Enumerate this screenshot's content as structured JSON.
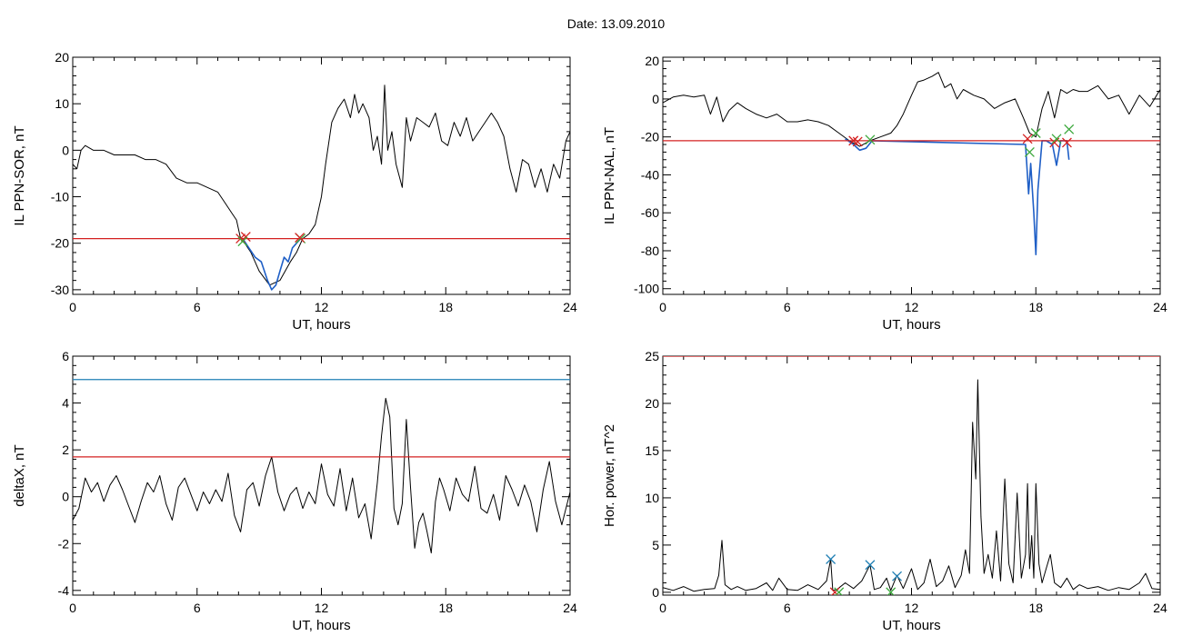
{
  "figure": {
    "title": "Date:  13.09.2010"
  },
  "chart_data": [
    {
      "type": "line",
      "id": "p1",
      "xlabel": "UT, hours",
      "ylabel": "IL PPN-SOR, nT",
      "xlim": [
        0,
        24
      ],
      "ylim": [
        -31,
        20
      ],
      "xticks": [
        0,
        6,
        12,
        18,
        24
      ],
      "yticks": [
        -30,
        -20,
        -10,
        0,
        10,
        20
      ],
      "hlines": [
        {
          "y": -19,
          "color": "#d42020"
        }
      ],
      "series": [
        {
          "color": "#000000",
          "x": [
            0,
            0.2,
            0.4,
            0.6,
            1.0,
            1.5,
            2.0,
            2.5,
            3.0,
            3.5,
            4.0,
            4.5,
            5.0,
            5.5,
            6.0,
            6.5,
            7.0,
            7.3,
            7.6,
            7.9,
            8.1,
            8.3,
            8.6,
            9.0,
            9.5,
            10.0,
            10.5,
            10.8,
            11.1,
            11.4,
            11.7,
            12.0,
            12.2,
            12.5,
            12.8,
            13.1,
            13.4,
            13.6,
            13.8,
            14.0,
            14.3,
            14.5,
            14.7,
            14.9,
            15.05,
            15.2,
            15.4,
            15.6,
            15.9,
            16.1,
            16.3,
            16.6,
            16.9,
            17.2,
            17.5,
            17.8,
            18.1,
            18.4,
            18.7,
            19.0,
            19.3,
            19.6,
            19.9,
            20.2,
            20.5,
            20.8,
            21.1,
            21.4,
            21.7,
            22.0,
            22.3,
            22.6,
            22.9,
            23.2,
            23.5,
            23.8,
            24.0
          ],
          "y": [
            -3,
            -4,
            0,
            1,
            0,
            0,
            -1,
            -1,
            -1,
            -2,
            -2,
            -3,
            -6,
            -7,
            -7,
            -8,
            -9,
            -11,
            -13,
            -15,
            -19,
            -20,
            -22,
            -26,
            -29,
            -28,
            -24,
            -22,
            -19,
            -18,
            -16,
            -10,
            -3,
            6,
            9,
            11,
            7,
            12,
            8,
            10,
            7,
            0,
            3,
            -3,
            14,
            0,
            4,
            -3,
            -8,
            7,
            2,
            7,
            6,
            5,
            8,
            2,
            1,
            6,
            3,
            7,
            2,
            4,
            6,
            8,
            6,
            3,
            -4,
            -9,
            -2,
            -3,
            -8,
            -4,
            -9,
            -3,
            -6,
            2,
            4
          ]
        },
        {
          "color": "#1f5fc6",
          "x": [
            8.2,
            8.5,
            8.8,
            9.1,
            9.4,
            9.6,
            9.8,
            10.0,
            10.2,
            10.4,
            10.6,
            10.8,
            11.0
          ],
          "y": [
            -19,
            -21,
            -23,
            -24,
            -28,
            -30,
            -29,
            -26,
            -23,
            -24,
            -21,
            -20,
            -19
          ]
        }
      ],
      "markers": [
        {
          "x": 8.1,
          "y": -19,
          "color": "#d42020"
        },
        {
          "x": 8.35,
          "y": -18.6,
          "color": "#d42020"
        },
        {
          "x": 8.2,
          "y": -19.6,
          "color": "#3ba83b"
        },
        {
          "x": 11.0,
          "y": -19,
          "color": "#3ba83b"
        },
        {
          "x": 10.95,
          "y": -18.8,
          "color": "#d42020"
        }
      ]
    },
    {
      "type": "line",
      "id": "p2",
      "xlabel": "UT, hours",
      "ylabel": "IL PPN-NAL, nT",
      "xlim": [
        0,
        24
      ],
      "ylim": [
        -103,
        22
      ],
      "xticks": [
        0,
        6,
        12,
        18,
        24
      ],
      "yticks": [
        -100,
        -80,
        -60,
        -40,
        -20,
        0,
        20
      ],
      "hlines": [
        {
          "y": -22,
          "color": "#d42020"
        }
      ],
      "series": [
        {
          "color": "#000000",
          "x": [
            0,
            0.5,
            1.0,
            1.5,
            2.0,
            2.3,
            2.6,
            2.9,
            3.2,
            3.6,
            4.0,
            4.5,
            5.0,
            5.5,
            6.0,
            6.5,
            7.0,
            7.5,
            8.0,
            8.5,
            9.0,
            9.5,
            10.0,
            10.5,
            11.0,
            11.3,
            11.6,
            12.0,
            12.3,
            12.6,
            13.0,
            13.3,
            13.6,
            13.9,
            14.2,
            14.5,
            15.0,
            15.5,
            16.0,
            16.5,
            17.0,
            17.4,
            17.7,
            18.0,
            18.3,
            18.6,
            18.9,
            19.2,
            19.5,
            19.8,
            20.1,
            20.5,
            21.0,
            21.5,
            22.0,
            22.5,
            23.0,
            23.5,
            24.0
          ],
          "y": [
            -2,
            1,
            2,
            1,
            2,
            -8,
            1,
            -12,
            -6,
            -2,
            -5,
            -8,
            -10,
            -8,
            -12,
            -12,
            -11,
            -12,
            -14,
            -18,
            -22,
            -25,
            -22,
            -20,
            -18,
            -14,
            -8,
            2,
            9,
            10,
            12,
            14,
            6,
            8,
            0,
            5,
            2,
            0,
            -5,
            -2,
            0,
            -10,
            -18,
            -20,
            -5,
            4,
            -10,
            5,
            3,
            5,
            4,
            4,
            7,
            0,
            2,
            -8,
            2,
            -4,
            5
          ]
        },
        {
          "color": "#1f5fc6",
          "x": [
            8.8,
            9.2,
            9.5,
            9.8,
            10.1,
            17.5,
            17.65,
            17.75,
            17.9,
            18.0,
            18.1,
            18.3,
            18.5,
            18.8,
            19.0,
            19.2,
            19.5,
            19.6
          ],
          "y": [
            -21,
            -24,
            -27,
            -26,
            -22,
            -24,
            -50,
            -34,
            -60,
            -82,
            -48,
            -22,
            -22,
            -24,
            -35,
            -22,
            -22,
            -32
          ]
        }
      ],
      "markers": [
        {
          "x": 9.2,
          "y": -22,
          "color": "#d42020"
        },
        {
          "x": 9.4,
          "y": -22.5,
          "color": "#d42020"
        },
        {
          "x": 10.0,
          "y": -21.5,
          "color": "#3ba83b"
        },
        {
          "x": 17.6,
          "y": -21,
          "color": "#d42020"
        },
        {
          "x": 17.7,
          "y": -28,
          "color": "#3ba83b"
        },
        {
          "x": 18.0,
          "y": -18,
          "color": "#3ba83b"
        },
        {
          "x": 18.9,
          "y": -23,
          "color": "#d42020"
        },
        {
          "x": 19.0,
          "y": -21,
          "color": "#3ba83b"
        },
        {
          "x": 19.5,
          "y": -23,
          "color": "#d42020"
        },
        {
          "x": 19.6,
          "y": -16,
          "color": "#3ba83b"
        }
      ]
    },
    {
      "type": "line",
      "id": "p3",
      "xlabel": "UT, hours",
      "ylabel": "deltaX, nT",
      "xlim": [
        0,
        24
      ],
      "ylim": [
        -4.2,
        6
      ],
      "xticks": [
        0,
        6,
        12,
        18,
        24
      ],
      "yticks": [
        -4,
        -2,
        0,
        2,
        4,
        6
      ],
      "hlines": [
        {
          "y": 5,
          "color": "#1f7fb4"
        },
        {
          "y": 1.7,
          "color": "#d42020"
        }
      ],
      "series": [
        {
          "color": "#000000",
          "x": [
            0,
            0.3,
            0.6,
            0.9,
            1.2,
            1.5,
            1.8,
            2.1,
            2.4,
            2.7,
            3.0,
            3.3,
            3.6,
            3.9,
            4.2,
            4.5,
            4.8,
            5.1,
            5.4,
            5.7,
            6.0,
            6.3,
            6.6,
            6.9,
            7.2,
            7.5,
            7.8,
            8.1,
            8.4,
            8.7,
            9.0,
            9.3,
            9.6,
            9.9,
            10.2,
            10.5,
            10.8,
            11.1,
            11.4,
            11.7,
            12.0,
            12.3,
            12.6,
            12.9,
            13.2,
            13.5,
            13.8,
            14.1,
            14.4,
            14.7,
            14.9,
            15.1,
            15.3,
            15.5,
            15.7,
            15.9,
            16.1,
            16.3,
            16.5,
            16.7,
            16.9,
            17.1,
            17.3,
            17.5,
            17.7,
            17.9,
            18.2,
            18.5,
            18.8,
            19.1,
            19.4,
            19.7,
            20.0,
            20.3,
            20.6,
            20.9,
            21.2,
            21.5,
            21.8,
            22.1,
            22.4,
            22.7,
            23.0,
            23.3,
            23.6,
            24.0
          ],
          "y": [
            -1,
            -0.5,
            0.8,
            0.2,
            0.6,
            -0.2,
            0.5,
            0.9,
            0.3,
            -0.4,
            -1.1,
            -0.2,
            0.6,
            0.2,
            0.9,
            -0.3,
            -1.0,
            0.4,
            0.8,
            0.1,
            -0.6,
            0.2,
            -0.3,
            0.3,
            -0.2,
            1.0,
            -0.8,
            -1.5,
            0.3,
            0.6,
            -0.4,
            0.9,
            1.7,
            0.2,
            -0.6,
            0.1,
            0.4,
            -0.5,
            0.2,
            -0.3,
            1.4,
            0.1,
            -0.4,
            1.2,
            -0.6,
            0.8,
            -0.9,
            -0.3,
            -1.8,
            0.6,
            2.6,
            4.2,
            3.4,
            -0.5,
            -1.2,
            -0.3,
            3.3,
            0.4,
            -2.2,
            -1.1,
            -0.7,
            -1.5,
            -2.4,
            -0.2,
            0.8,
            0.3,
            -0.6,
            0.8,
            0.1,
            -0.2,
            1.3,
            -0.5,
            -0.7,
            0.1,
            -1.0,
            0.9,
            0.3,
            -0.4,
            0.5,
            -0.2,
            -1.5,
            0.3,
            1.5,
            -0.2,
            -1.2,
            0.2
          ]
        }
      ],
      "markers": []
    },
    {
      "type": "line",
      "id": "p4",
      "xlabel": "UT, hours",
      "ylabel": "Hor. power, nT^2",
      "xlim": [
        0,
        24
      ],
      "ylim": [
        -0.3,
        25
      ],
      "xticks": [
        0,
        6,
        12,
        18,
        24
      ],
      "yticks": [
        0,
        5,
        10,
        15,
        20,
        25
      ],
      "hlines": [
        {
          "y": 25,
          "color": "#d42020"
        }
      ],
      "series": [
        {
          "color": "#000000",
          "x": [
            0,
            0.5,
            1.0,
            1.5,
            2.0,
            2.5,
            2.7,
            2.85,
            3.0,
            3.3,
            3.6,
            4.0,
            4.5,
            5.0,
            5.3,
            5.6,
            6.0,
            6.5,
            7.0,
            7.5,
            7.9,
            8.1,
            8.2,
            8.4,
            8.8,
            9.2,
            9.6,
            10.0,
            10.2,
            10.5,
            10.8,
            11.0,
            11.3,
            11.6,
            12.0,
            12.3,
            12.6,
            12.9,
            13.2,
            13.5,
            13.8,
            14.1,
            14.4,
            14.6,
            14.8,
            14.95,
            15.1,
            15.2,
            15.35,
            15.5,
            15.7,
            15.9,
            16.1,
            16.3,
            16.5,
            16.7,
            16.9,
            17.1,
            17.3,
            17.5,
            17.6,
            17.7,
            17.8,
            17.9,
            18.0,
            18.15,
            18.3,
            18.5,
            18.7,
            18.9,
            19.2,
            19.5,
            19.8,
            20.1,
            20.5,
            21.0,
            21.5,
            22.0,
            22.5,
            23.0,
            23.3,
            23.6,
            24.0
          ],
          "y": [
            0.5,
            0.2,
            0.6,
            0.1,
            0.3,
            0.4,
            1.8,
            5.5,
            0.8,
            0.3,
            0.6,
            0.2,
            0.4,
            1.0,
            0.2,
            1.5,
            0.3,
            0.2,
            0.8,
            0.3,
            1.2,
            3.5,
            0.2,
            0.3,
            1.0,
            0.4,
            1.2,
            2.9,
            0.3,
            0.5,
            1.5,
            0.2,
            1.8,
            0.4,
            2.5,
            0.3,
            1.0,
            3.5,
            0.6,
            1.2,
            2.8,
            0.5,
            1.8,
            4.5,
            2.0,
            18.0,
            12.0,
            22.5,
            8.0,
            2.0,
            4.0,
            1.5,
            6.5,
            1.2,
            12.0,
            3.0,
            1.0,
            10.5,
            1.5,
            4.0,
            11.5,
            2.5,
            6.0,
            1.5,
            11.5,
            3.0,
            1.0,
            2.5,
            4.0,
            1.0,
            0.5,
            1.5,
            0.3,
            0.8,
            0.4,
            0.6,
            0.2,
            0.5,
            0.3,
            1.0,
            2.0,
            0.4,
            0.3
          ]
        }
      ],
      "markers": [
        {
          "x": 8.1,
          "y": 3.5,
          "color": "#1f7fb4"
        },
        {
          "x": 10.0,
          "y": 2.9,
          "color": "#1f7fb4"
        },
        {
          "x": 11.3,
          "y": 1.7,
          "color": "#1f7fb4"
        },
        {
          "x": 8.3,
          "y": 0,
          "color": "#d42020"
        },
        {
          "x": 8.5,
          "y": 0,
          "color": "#3ba83b"
        },
        {
          "x": 11.0,
          "y": 0,
          "color": "#3ba83b"
        }
      ]
    }
  ]
}
